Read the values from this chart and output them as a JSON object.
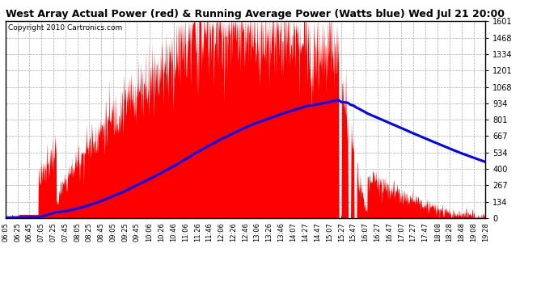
{
  "title": "West Array Actual Power (red) & Running Average Power (Watts blue) Wed Jul 21 20:00",
  "copyright": "Copyright 2010 Cartronics.com",
  "bg_color": "#ffffff",
  "plot_bg_color": "#ffffff",
  "grid_color": "#aaaaaa",
  "fill_color": "#ff0000",
  "line_color": "#0000ff",
  "y_ticks": [
    0.0,
    133.5,
    266.9,
    400.4,
    533.8,
    667.3,
    800.7,
    934.2,
    1067.6,
    1201.1,
    1334.5,
    1468.0,
    1601.4
  ],
  "ymax": 1601.4,
  "ymin": 0.0,
  "x_labels": [
    "06:05",
    "06:25",
    "06:45",
    "07:05",
    "07:25",
    "07:45",
    "08:05",
    "08:25",
    "08:45",
    "09:05",
    "09:25",
    "09:45",
    "10:06",
    "10:26",
    "10:46",
    "11:06",
    "11:26",
    "11:46",
    "12:06",
    "12:26",
    "12:46",
    "13:06",
    "13:26",
    "13:46",
    "14:07",
    "14:27",
    "14:47",
    "15:07",
    "15:27",
    "15:47",
    "16:07",
    "16:27",
    "16:47",
    "17:07",
    "17:27",
    "17:47",
    "18:08",
    "18:28",
    "18:48",
    "19:08",
    "19:28"
  ]
}
